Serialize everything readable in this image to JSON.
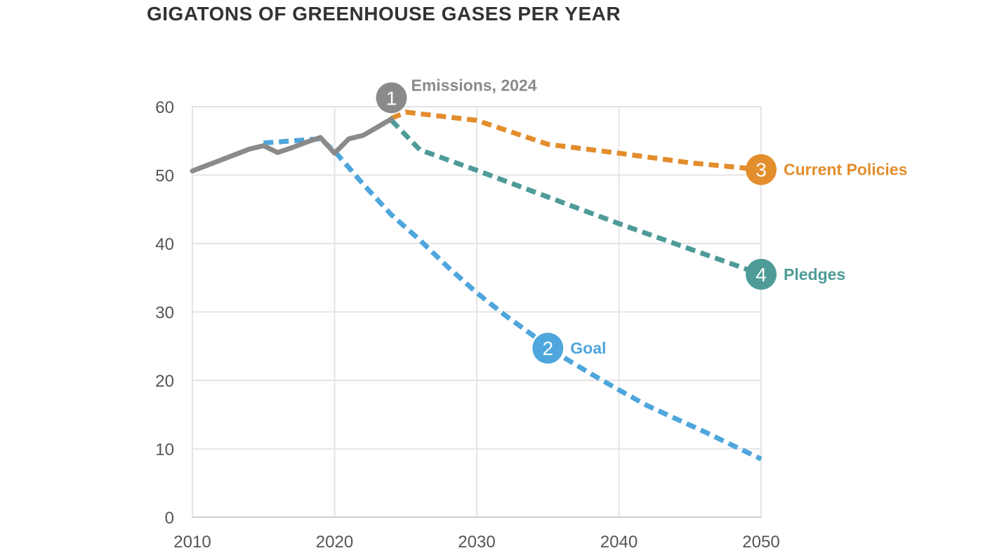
{
  "chart_data": {
    "type": "line",
    "title": "GIGATONS OF GREENHOUSE GASES PER YEAR",
    "xlabel": "",
    "ylabel": "",
    "xlim": [
      2010,
      2050
    ],
    "ylim": [
      0,
      60
    ],
    "x_ticks": [
      "2010",
      "2020",
      "2030",
      "2040",
      "2050"
    ],
    "y_ticks": [
      "0",
      "10",
      "20",
      "30",
      "40",
      "50",
      "60"
    ],
    "grid": true,
    "legend": "none",
    "series": [
      {
        "name": "Emissions, 2024",
        "badge": "1",
        "style": "solid",
        "color": "#8a8a8a",
        "x": [
          2010,
          2011,
          2012,
          2013,
          2014,
          2015,
          2016,
          2017,
          2018,
          2019,
          2020,
          2021,
          2022,
          2023,
          2024
        ],
        "y": [
          50.6,
          51.4,
          52.2,
          53.0,
          53.8,
          54.3,
          53.3,
          54.0,
          54.8,
          55.5,
          53.2,
          55.3,
          55.8,
          57.0,
          58.2
        ]
      },
      {
        "name": "Goal",
        "badge": "2",
        "style": "dotted",
        "color": "#4ea6dc",
        "x": [
          2015,
          2017,
          2019,
          2020,
          2022,
          2024,
          2026,
          2028,
          2030,
          2032,
          2034,
          2035,
          2036,
          2038,
          2040,
          2042,
          2044,
          2046,
          2048,
          2050
        ],
        "y": [
          54.7,
          55.0,
          55.3,
          53.5,
          48.7,
          44.2,
          40.5,
          36.5,
          32.8,
          29.5,
          26.5,
          24.7,
          23.5,
          21.0,
          18.6,
          16.3,
          14.4,
          12.5,
          10.5,
          8.5
        ]
      },
      {
        "name": "Current Policies",
        "badge": "3",
        "style": "dotted",
        "color": "#e38d2c",
        "x": [
          2024,
          2025,
          2030,
          2035,
          2040,
          2045,
          2050
        ],
        "y": [
          58.3,
          59.2,
          58.0,
          54.5,
          53.2,
          51.8,
          50.8
        ]
      },
      {
        "name": "Pledges",
        "badge": "4",
        "style": "dotted",
        "color": "#4e9b98",
        "x": [
          2024,
          2026,
          2030,
          2035,
          2040,
          2045,
          2050
        ],
        "y": [
          58.0,
          53.7,
          50.7,
          46.8,
          42.9,
          39.2,
          35.5
        ]
      }
    ],
    "annotations": [
      {
        "badge": "1",
        "text": "Emissions, 2024",
        "x": 2024,
        "y": 61.3,
        "color": "#8a8a8a",
        "label_side": "right-above"
      },
      {
        "badge": "2",
        "text": "Goal",
        "x": 2035,
        "y": 24.7,
        "color": "#4ea6dc",
        "label_side": "right"
      },
      {
        "badge": "3",
        "text": "Current Policies",
        "x": 2050,
        "y": 50.8,
        "color": "#e38d2c",
        "label_side": "right"
      },
      {
        "badge": "4",
        "text": "Pledges",
        "x": 2050,
        "y": 35.5,
        "color": "#4e9b98",
        "label_side": "right"
      }
    ]
  }
}
